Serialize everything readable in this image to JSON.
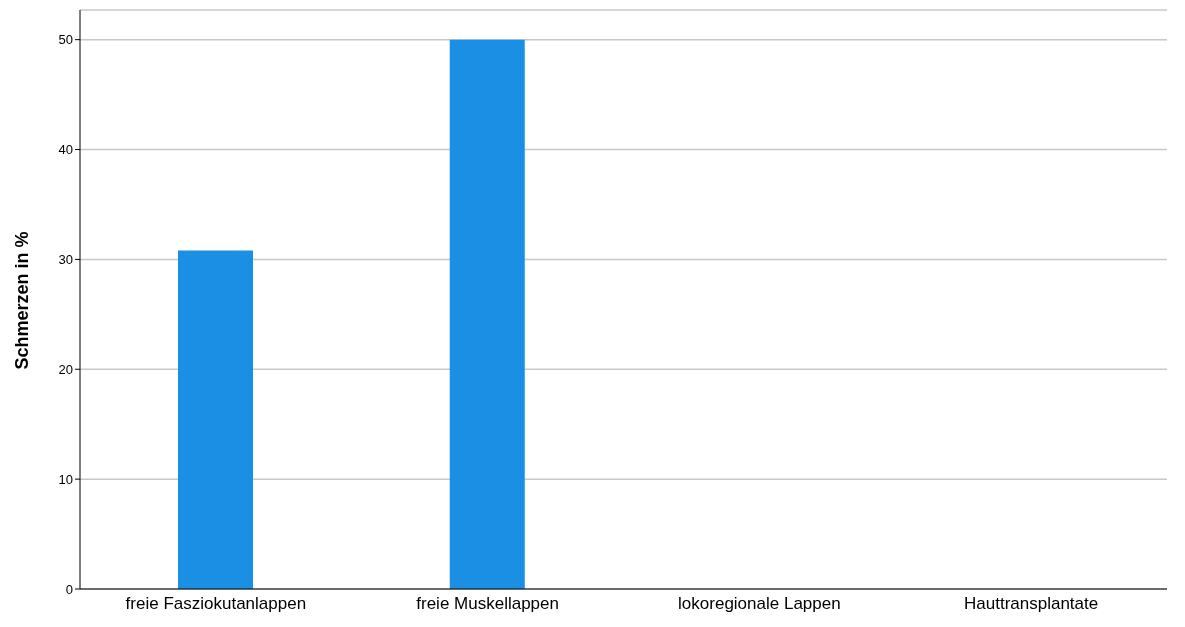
{
  "chart_data": {
    "type": "bar",
    "ylabel": "Schmerzen in %",
    "categories": [
      "freie Fasziokutanlappen",
      "freie Muskellappen",
      "lokoregionale Lappen",
      "Hauttransplantate"
    ],
    "values": [
      30.8,
      50,
      0,
      0
    ],
    "color": "#1a8fe3",
    "ylim": [
      0,
      52.7
    ],
    "yticks": [
      0,
      10,
      20,
      30,
      40,
      50
    ],
    "grid": "y"
  }
}
